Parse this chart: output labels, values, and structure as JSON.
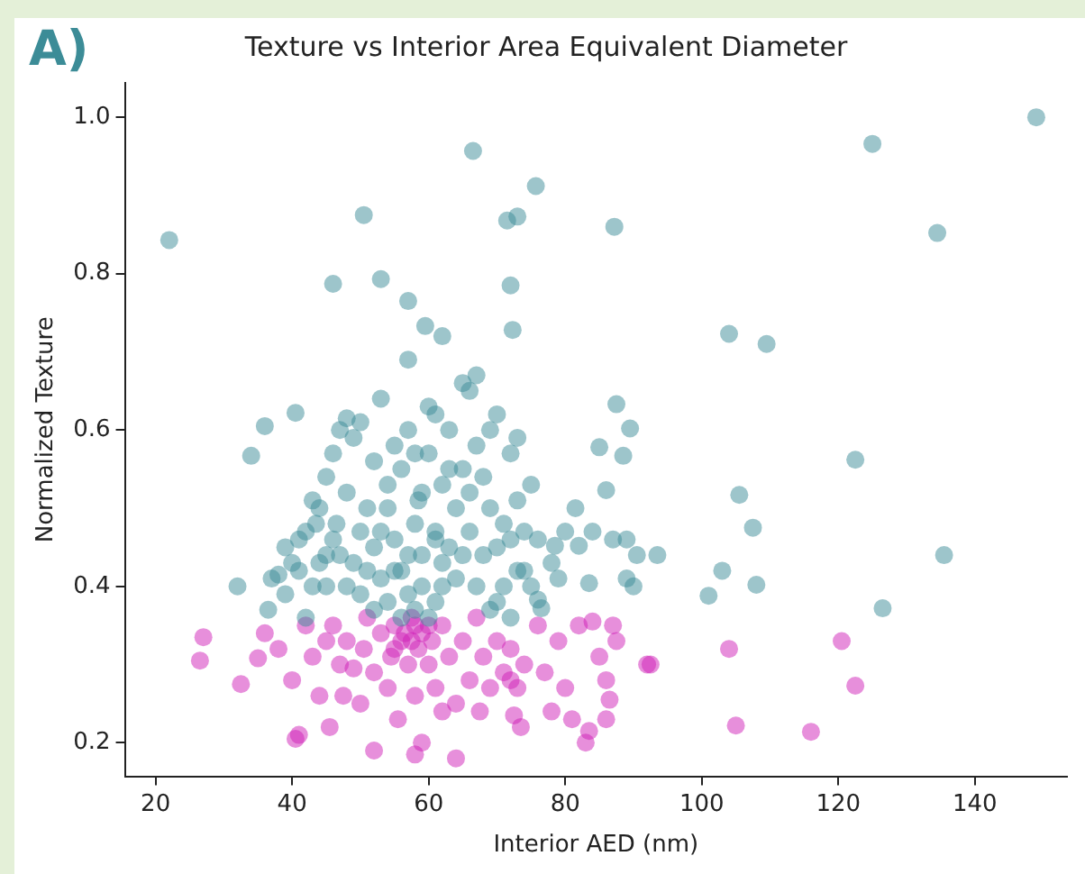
{
  "chart_data": {
    "type": "scatter",
    "title": "Texture vs Interior Area Equivalent Diameter",
    "xlabel": "Interior AED (nm)",
    "ylabel": "Normalized Texture",
    "annotations": [
      "A)"
    ],
    "xlim": [
      15.5,
      153.5
    ],
    "ylim": [
      0.157,
      1.044
    ],
    "xticks": [
      20,
      40,
      60,
      80,
      100,
      120,
      140
    ],
    "yticks": [
      0.2,
      0.4,
      0.6,
      0.8,
      {
        "value": 1.0,
        "label": "1.0"
      }
    ],
    "grid": false,
    "legend": false,
    "marker": "circle",
    "series": [
      {
        "color": "#3c8c97",
        "x": [
          22,
          50.5,
          46,
          53,
          57,
          59.5,
          62,
          66.5,
          71.5,
          73,
          75.7,
          72,
          72.3,
          87.2,
          104,
          109.5,
          125,
          134.5,
          149,
          122.5,
          135.5,
          126.5,
          105.5,
          107.5,
          108,
          103,
          101,
          93.5,
          89.5,
          87.5,
          88.5,
          85,
          86,
          81.5,
          87,
          89,
          90.5,
          89,
          90,
          84,
          82,
          80,
          78.5,
          83.5,
          79,
          76,
          76.5,
          78,
          32,
          34,
          36,
          36.5,
          37,
          38,
          39,
          40.5,
          41,
          42,
          41,
          43,
          43.5,
          44,
          45,
          45,
          46,
          46.5,
          47,
          48,
          48,
          49,
          50,
          50,
          51,
          52,
          52,
          53,
          54,
          55,
          55,
          56,
          56,
          57,
          57,
          58,
          58.5,
          59,
          60,
          60,
          61,
          61,
          62,
          62,
          63,
          63,
          64,
          64,
          65,
          65,
          66,
          66,
          67,
          67,
          68,
          68,
          69,
          69,
          70,
          70,
          71,
          71,
          72,
          72,
          73,
          73,
          74,
          74,
          75,
          76,
          47,
          48,
          49,
          50,
          51,
          52,
          53,
          54,
          55,
          56,
          57,
          58,
          59,
          60,
          61,
          62,
          44,
          45,
          46,
          40,
          39,
          42,
          43,
          67,
          69,
          70,
          72,
          73,
          75,
          65,
          66,
          63,
          58,
          54,
          53,
          57,
          59,
          61
        ],
        "values": [
          0.843,
          0.875,
          0.787,
          0.793,
          0.765,
          0.733,
          0.72,
          0.957,
          0.868,
          0.873,
          0.912,
          0.785,
          0.728,
          0.86,
          0.723,
          0.71,
          0.966,
          0.852,
          1.0,
          0.562,
          0.44,
          0.372,
          0.517,
          0.475,
          0.402,
          0.42,
          0.388,
          0.44,
          0.602,
          0.633,
          0.567,
          0.578,
          0.523,
          0.5,
          0.46,
          0.46,
          0.44,
          0.41,
          0.4,
          0.47,
          0.452,
          0.47,
          0.452,
          0.404,
          0.41,
          0.383,
          0.372,
          0.43,
          0.4,
          0.567,
          0.605,
          0.37,
          0.41,
          0.415,
          0.45,
          0.622,
          0.46,
          0.47,
          0.42,
          0.51,
          0.48,
          0.5,
          0.44,
          0.54,
          0.57,
          0.48,
          0.6,
          0.615,
          0.52,
          0.59,
          0.61,
          0.47,
          0.5,
          0.45,
          0.56,
          0.64,
          0.5,
          0.58,
          0.46,
          0.55,
          0.42,
          0.69,
          0.6,
          0.48,
          0.51,
          0.44,
          0.63,
          0.57,
          0.62,
          0.47,
          0.53,
          0.43,
          0.6,
          0.45,
          0.5,
          0.41,
          0.66,
          0.55,
          0.65,
          0.47,
          0.67,
          0.58,
          0.54,
          0.44,
          0.6,
          0.5,
          0.62,
          0.45,
          0.48,
          0.4,
          0.57,
          0.46,
          0.59,
          0.51,
          0.42,
          0.47,
          0.53,
          0.46,
          0.44,
          0.4,
          0.43,
          0.39,
          0.42,
          0.37,
          0.41,
          0.38,
          0.42,
          0.36,
          0.39,
          0.37,
          0.4,
          0.36,
          0.38,
          0.4,
          0.43,
          0.4,
          0.46,
          0.43,
          0.39,
          0.36,
          0.4,
          0.4,
          0.37,
          0.38,
          0.36,
          0.42,
          0.4,
          0.44,
          0.52,
          0.55,
          0.57,
          0.53,
          0.47,
          0.44,
          0.52,
          0.46
        ]
      },
      {
        "color": "#d020b8",
        "x": [
          27,
          26.5,
          32.5,
          35,
          36,
          38,
          40,
          40.5,
          41,
          42,
          43,
          44,
          45,
          45.5,
          46,
          47,
          47.5,
          48,
          49,
          50,
          50.5,
          51,
          52,
          52,
          53,
          54,
          54.5,
          55,
          55.5,
          56,
          57,
          57.5,
          58,
          58,
          58.5,
          59,
          59,
          60,
          60.5,
          61,
          62,
          62,
          63,
          64,
          64,
          65,
          66,
          67,
          67.5,
          68,
          69,
          70,
          71,
          72,
          72,
          72.5,
          73,
          73.5,
          74,
          76,
          77,
          78,
          79,
          80,
          81,
          82,
          83,
          83.5,
          84,
          85,
          86,
          86.5,
          87,
          87.5,
          92,
          92.5,
          86,
          104,
          105,
          116,
          120.5,
          122.5,
          55,
          56.5,
          57.5,
          60,
          58
        ],
        "values": [
          0.335,
          0.305,
          0.275,
          0.308,
          0.34,
          0.32,
          0.28,
          0.205,
          0.21,
          0.35,
          0.31,
          0.26,
          0.33,
          0.22,
          0.35,
          0.3,
          0.26,
          0.33,
          0.295,
          0.25,
          0.32,
          0.36,
          0.19,
          0.29,
          0.34,
          0.27,
          0.31,
          0.35,
          0.23,
          0.33,
          0.3,
          0.36,
          0.26,
          0.185,
          0.32,
          0.34,
          0.2,
          0.3,
          0.33,
          0.27,
          0.35,
          0.24,
          0.31,
          0.25,
          0.18,
          0.33,
          0.28,
          0.36,
          0.24,
          0.31,
          0.27,
          0.33,
          0.29,
          0.32,
          0.28,
          0.235,
          0.27,
          0.22,
          0.3,
          0.35,
          0.29,
          0.24,
          0.33,
          0.27,
          0.23,
          0.35,
          0.2,
          0.215,
          0.355,
          0.31,
          0.28,
          0.255,
          0.35,
          0.33,
          0.3,
          0.3,
          0.23,
          0.32,
          0.222,
          0.214,
          0.33,
          0.273,
          0.32,
          0.34,
          0.33,
          0.35,
          0.35
        ]
      }
    ]
  }
}
